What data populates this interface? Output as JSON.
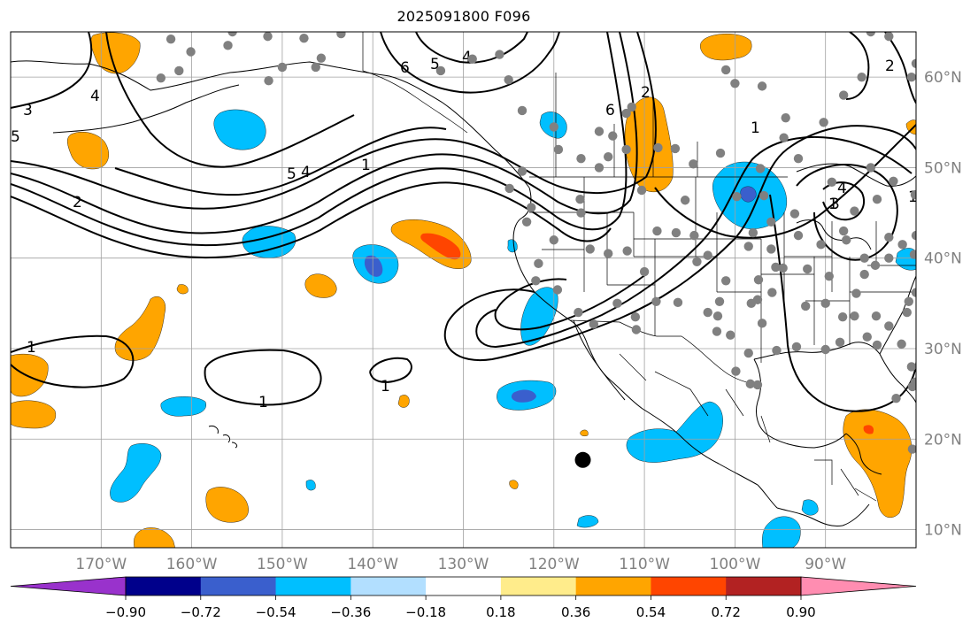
{
  "title": "2025091800 F096",
  "map": {
    "projection": "equirectangular",
    "lon_range": [
      -180,
      -80
    ],
    "lat_range": [
      8,
      65
    ],
    "lon_ticks": [
      {
        "value": -170,
        "label": "170°W"
      },
      {
        "value": -160,
        "label": "160°W"
      },
      {
        "value": -150,
        "label": "150°W"
      },
      {
        "value": -140,
        "label": "140°W"
      },
      {
        "value": -130,
        "label": "130°W"
      },
      {
        "value": -120,
        "label": "120°W"
      },
      {
        "value": -110,
        "label": "110°W"
      },
      {
        "value": -100,
        "label": "100°W"
      },
      {
        "value": -90,
        "label": "90°W"
      }
    ],
    "lat_ticks": [
      {
        "value": 60,
        "label": "60°N"
      },
      {
        "value": 50,
        "label": "50°N"
      },
      {
        "value": 40,
        "label": "40°N"
      },
      {
        "value": 30,
        "label": "30°N"
      },
      {
        "value": 20,
        "label": "20°N"
      },
      {
        "value": 10,
        "label": "10°N"
      }
    ],
    "gridlines": true,
    "tick_label_color": "#808080",
    "marker": {
      "lon": -116.8,
      "lat": 17.7,
      "color": "#000000"
    },
    "station_color": "#808080",
    "stations": [
      [
        -162.3,
        64.2
      ],
      [
        -156,
        63.5
      ],
      [
        -151.6,
        64.5
      ],
      [
        -143.5,
        64.8
      ],
      [
        -161.4,
        60.7
      ],
      [
        -163.4,
        59.9
      ],
      [
        -160.1,
        62.8
      ],
      [
        -151.5,
        59.6
      ],
      [
        -150,
        61.1
      ],
      [
        -146.3,
        61.1
      ],
      [
        -145.7,
        62.1
      ],
      [
        -147.6,
        64.3
      ],
      [
        -155.5,
        65
      ],
      [
        -132.5,
        60.7
      ],
      [
        -129,
        62
      ],
      [
        -126,
        62.5
      ],
      [
        -125,
        59.7
      ],
      [
        -123.5,
        56.3
      ],
      [
        -120,
        54.5
      ],
      [
        -119.5,
        52
      ],
      [
        -117,
        51
      ],
      [
        -115,
        50
      ],
      [
        -114,
        51.2
      ],
      [
        -113.5,
        53.5
      ],
      [
        -112,
        56
      ],
      [
        -111.4,
        56.7
      ],
      [
        -108.5,
        52.2
      ],
      [
        -106.6,
        52.1
      ],
      [
        -104.6,
        50.4
      ],
      [
        -101.6,
        51.6
      ],
      [
        -97.2,
        49.9
      ],
      [
        -94.6,
        53.3
      ],
      [
        -94.4,
        55.5
      ],
      [
        -97,
        59
      ],
      [
        -101,
        60.8
      ],
      [
        -115,
        54
      ],
      [
        -112,
        52
      ],
      [
        -117.1,
        46.5
      ],
      [
        -123.5,
        49.6
      ],
      [
        -124.9,
        47.7
      ],
      [
        -122.5,
        45.6
      ],
      [
        -117,
        45
      ],
      [
        -123,
        44
      ],
      [
        -120,
        42
      ],
      [
        -121.7,
        39.4
      ],
      [
        -122,
        37.5
      ],
      [
        -119.6,
        36.5
      ],
      [
        -117.3,
        34
      ],
      [
        -115.6,
        32.7
      ],
      [
        -111.9,
        40.8
      ],
      [
        -108.6,
        43
      ],
      [
        -106.5,
        42.8
      ],
      [
        -104.2,
        39.6
      ],
      [
        -101,
        37.5
      ],
      [
        -106.3,
        35.1
      ],
      [
        -103,
        34
      ],
      [
        -108.7,
        35.2
      ],
      [
        -111,
        33.5
      ],
      [
        -110.9,
        32.1
      ],
      [
        -113,
        35
      ],
      [
        -110,
        38.5
      ],
      [
        -114,
        40.5
      ],
      [
        -116,
        41
      ],
      [
        -110.3,
        47.5
      ],
      [
        -105.5,
        46.4
      ],
      [
        -104.5,
        42.5
      ],
      [
        -99.8,
        46.8
      ],
      [
        -96.8,
        46.9
      ],
      [
        -96,
        44
      ],
      [
        -98,
        42.8
      ],
      [
        -98.5,
        41.3
      ],
      [
        -96,
        41
      ],
      [
        -93.4,
        44.9
      ],
      [
        -93,
        42.5
      ],
      [
        -90.5,
        41.5
      ],
      [
        -88,
        43
      ],
      [
        -86.8,
        45.2
      ],
      [
        -84.3,
        46.5
      ],
      [
        -83,
        42.3
      ],
      [
        -87.7,
        42
      ],
      [
        -85.7,
        40
      ],
      [
        -89.6,
        38
      ],
      [
        -90,
        35
      ],
      [
        -86.6,
        36.1
      ],
      [
        -85.7,
        38.2
      ],
      [
        -84.5,
        39.2
      ],
      [
        -83,
        40
      ],
      [
        -81.5,
        41.5
      ],
      [
        -80.2,
        40.4
      ],
      [
        -94.7,
        38.9
      ],
      [
        -92,
        38.8
      ],
      [
        -95.5,
        39
      ],
      [
        -97.4,
        37.6
      ],
      [
        -98.2,
        35
      ],
      [
        -95.9,
        36.2
      ],
      [
        -92.2,
        34.7
      ],
      [
        -97.5,
        35.4
      ],
      [
        -101.7,
        35.2
      ],
      [
        -101.9,
        33.6
      ],
      [
        -97,
        32.8
      ],
      [
        -95.4,
        29.8
      ],
      [
        -98.5,
        29.5
      ],
      [
        -100.5,
        31.5
      ],
      [
        -102,
        31.9
      ],
      [
        -97.5,
        26
      ],
      [
        -93.2,
        30.2
      ],
      [
        -90,
        29.9
      ],
      [
        -88.4,
        30.7
      ],
      [
        -88.1,
        33.5
      ],
      [
        -86.8,
        33.6
      ],
      [
        -84.4,
        33.6
      ],
      [
        -83,
        32.5
      ],
      [
        -85.4,
        31.3
      ],
      [
        -84.3,
        30.4
      ],
      [
        -81.6,
        30.5
      ],
      [
        -80.5,
        28
      ],
      [
        -80.1,
        26.3
      ],
      [
        -82.2,
        24.5
      ],
      [
        -81,
        34
      ],
      [
        -79,
        35
      ],
      [
        -80.8,
        35.2
      ],
      [
        -80,
        36.2
      ],
      [
        -99.9,
        27.5
      ],
      [
        -98.3,
        26.1
      ],
      [
        -80.4,
        18.9
      ],
      [
        -80.4,
        25.8
      ],
      [
        -103,
        40.3
      ],
      [
        -80,
        42.5
      ],
      [
        -80.1,
        47
      ],
      [
        -82.5,
        48.5
      ],
      [
        -89.3,
        48.4
      ],
      [
        -85,
        50
      ],
      [
        -93,
        51
      ],
      [
        -90.2,
        55
      ],
      [
        -86,
        60
      ],
      [
        -80,
        61.5
      ],
      [
        -80.5,
        60
      ],
      [
        -83,
        64.5
      ],
      [
        -85,
        65
      ],
      [
        -88,
        58
      ],
      [
        -100,
        59.3
      ]
    ],
    "contour_labels": [
      "6",
      "5",
      "4",
      "4",
      "3",
      "5",
      "2",
      "1",
      "5",
      "4",
      "1",
      "2",
      "6",
      "1",
      "2",
      "1",
      "1",
      "1",
      "4",
      "1",
      "3"
    ]
  },
  "colorbar": {
    "levels": [
      -0.9,
      -0.72,
      -0.54,
      -0.36,
      -0.18,
      0.18,
      0.36,
      0.54,
      0.72,
      0.9
    ],
    "tick_labels": [
      "−0.90",
      "−0.72",
      "−0.54",
      "−0.36",
      "−0.18",
      "0.18",
      "0.36",
      "0.54",
      "0.72",
      "0.90"
    ],
    "colors": [
      "#9932CC",
      "#00008B",
      "#3A5FCD",
      "#00BFFF",
      "#B2DFFF",
      "#FFFFFF",
      "#FFEC8B",
      "#FFA500",
      "#FF4500",
      "#B22222",
      "#FF8DB1"
    ]
  }
}
